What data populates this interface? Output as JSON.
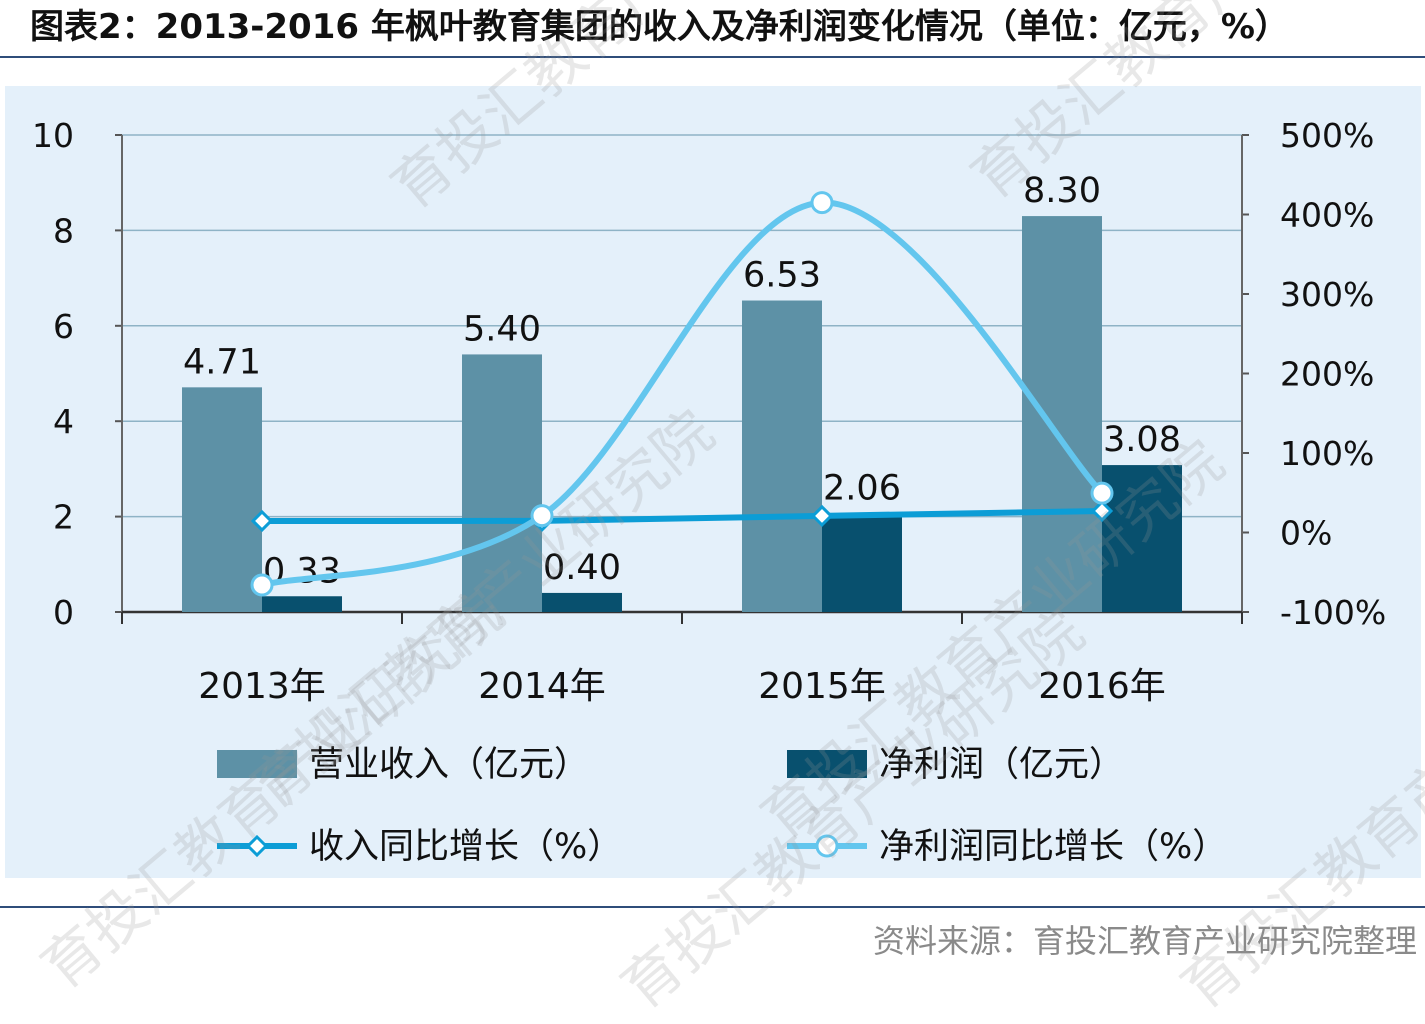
{
  "title": "图表2：2013-2016 年枫叶教育集团的收入及净利润变化情况（单位：亿元，%）",
  "source": "资料来源：育投汇教育产业研究院整理",
  "watermark": "育投汇教育产业研究院",
  "chart_data": {
    "type": "bar",
    "categories": [
      "2013年",
      "2014年",
      "2015年",
      "2016年"
    ],
    "ylim": [
      0,
      10
    ],
    "y_ticks": [
      "0",
      "2",
      "4",
      "6",
      "8",
      "10"
    ],
    "y2lim": [
      -100,
      500
    ],
    "y2_ticks": [
      "-100%",
      "0%",
      "100%",
      "200%",
      "300%",
      "400%",
      "500%"
    ],
    "grid": true,
    "legend_position": "bottom",
    "series": [
      {
        "name": "营业收入（亿元）",
        "kind": "bar",
        "axis": "left",
        "color": "#5d91a6",
        "values": [
          4.71,
          5.4,
          6.53,
          8.3
        ],
        "labels": [
          "4.71",
          "5.40",
          "6.53",
          "8.30"
        ]
      },
      {
        "name": "净利润（亿元）",
        "kind": "bar",
        "axis": "left",
        "color": "#08506e",
        "values": [
          0.33,
          0.4,
          2.06,
          3.08
        ],
        "labels": [
          "0.33",
          "0.40",
          "2.06",
          "3.08"
        ]
      },
      {
        "name": "收入同比增长（%）",
        "kind": "line",
        "marker": "diamond",
        "axis": "right",
        "color": "#0c9dd6",
        "values": [
          14.5,
          14.6,
          20.9,
          27.1
        ]
      },
      {
        "name": "净利润同比增长（%）",
        "kind": "line",
        "marker": "circle",
        "smooth": true,
        "axis": "right",
        "color": "#63c6ee",
        "values": [
          -66.0,
          21.2,
          415.0,
          49.5
        ]
      }
    ]
  }
}
